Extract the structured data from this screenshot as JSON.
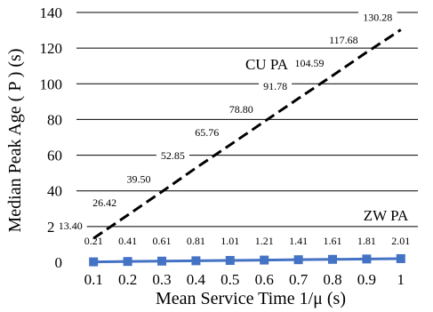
{
  "chart_data": {
    "type": "line",
    "categories": [
      "0.1",
      "0.2",
      "0.3",
      "0.4",
      "0.5",
      "0.6",
      "0.7",
      "0.8",
      "0.9",
      "1"
    ],
    "series": [
      {
        "name": "CU PA",
        "values": [
          13.4,
          26.42,
          39.5,
          52.85,
          65.76,
          78.8,
          91.78,
          104.59,
          117.68,
          130.28
        ],
        "labels": [
          "13.40",
          "26.42",
          "39.50",
          "52.85",
          "65.76",
          "78.80",
          "91.78",
          "104.59",
          "117.68",
          "130.28"
        ],
        "color": "#000000",
        "style": "dashed",
        "marker": "none"
      },
      {
        "name": "ZW PA",
        "values": [
          0.21,
          0.41,
          0.61,
          0.81,
          1.01,
          1.21,
          1.41,
          1.61,
          1.81,
          2.01
        ],
        "labels": [
          "0.21",
          "0.41",
          "0.61",
          "0.81",
          "1.01",
          "1.21",
          "1.41",
          "1.61",
          "1.81",
          "2.01"
        ],
        "color": "#4472C4",
        "style": "solid",
        "marker": "square"
      }
    ],
    "xlabel": "Mean Service Time 1/μ (s)",
    "ylabel": "Median Peak Age ( P ) (s)",
    "ylim": [
      0,
      140
    ],
    "yticks": [
      "0",
      "20",
      "40",
      "60",
      "80",
      "100",
      "120",
      "140"
    ],
    "grid": "horizontal",
    "legend": "none"
  }
}
